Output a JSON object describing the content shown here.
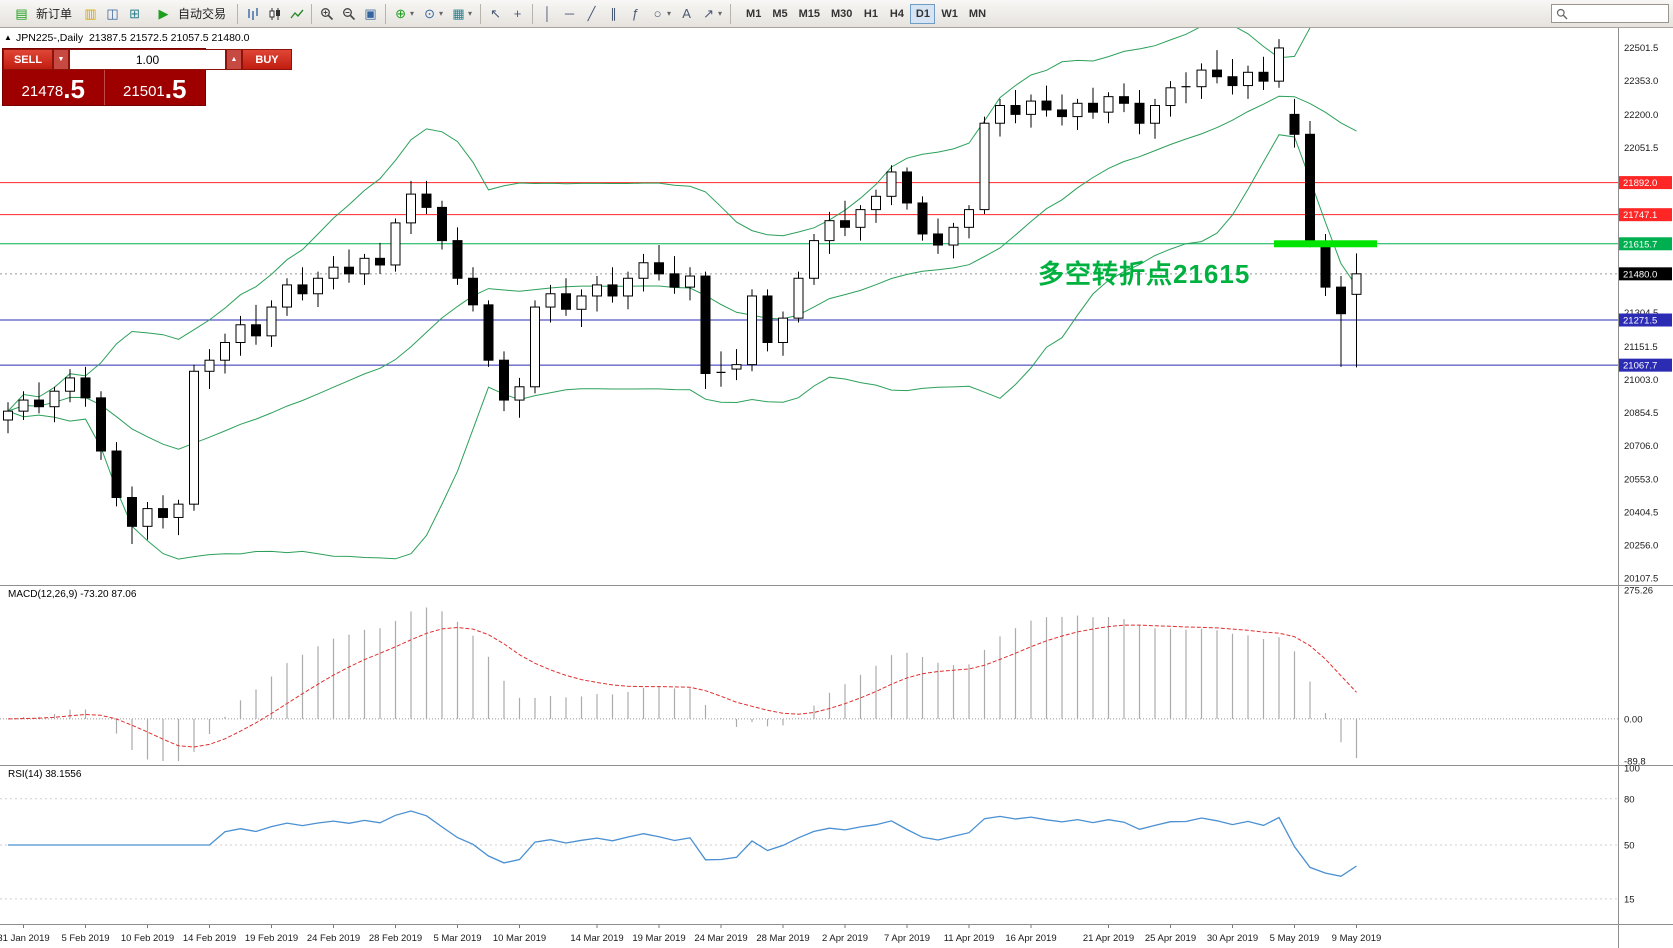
{
  "toolbar": {
    "new_order": "新订单",
    "autotrade": "自动交易",
    "timeframes": [
      "M1",
      "M5",
      "M15",
      "M30",
      "H1",
      "H4",
      "D1",
      "W1",
      "MN"
    ],
    "active_timeframe": "D1"
  },
  "icons": {
    "terminal": "▤",
    "profiles": "▥",
    "charts_grid": "◫",
    "window_new": "⊞",
    "play": "▶",
    "tile_windows": "▣",
    "arrange_windows": "▦",
    "indicators": "⊕",
    "periods": "⊙",
    "templates": "▦",
    "cursor": "↖",
    "crosshair": "+",
    "vertical_line": "│",
    "horizontal_line": "─",
    "trendline": "╱",
    "channel": "∥",
    "fibonacci": "ƒ",
    "shapes": "○",
    "text_tool": "A",
    "arrows_tool": "↗",
    "caret": "▾"
  },
  "chart": {
    "info_line": "JPN225-,Daily  21387.5 21572.5 21057.5 21480.0",
    "trade_widget": {
      "sell_label": "SELL",
      "buy_label": "BUY",
      "volume": "1.00",
      "spin_down": "▼",
      "spin_up": "▲",
      "sell_price_int": "21478",
      "sell_price_dec": ".5",
      "buy_price_int": "21501",
      "buy_price_dec": ".5"
    },
    "annotation": {
      "text": "多空转折点21615",
      "color": "#00b140"
    }
  },
  "panels": {
    "macd_label": "MACD(12,26,9) -73.20 87.06",
    "rsi_label": "RSI(14) 38.1556"
  },
  "chart_data": {
    "type": "candlestick",
    "symbol": "JPN225-",
    "period": "Daily",
    "current_bar": {
      "open": 21387.5,
      "high": 21572.5,
      "low": 21057.5,
      "close": 21480.0
    },
    "bid": 21478.5,
    "ask": 21501.5,
    "price_axis": {
      "min": 20075,
      "max": 22590,
      "ticks": [
        22501.5,
        22353.0,
        22200.0,
        22051.5,
        21304.5,
        21151.5,
        21003.0,
        20854.5,
        20706.0,
        20553.0,
        20404.5,
        20256.0,
        20107.5
      ]
    },
    "hlines": [
      {
        "value": 21892.0,
        "label": "21892.0",
        "color": "#ff2626"
      },
      {
        "value": 21747.1,
        "label": "21747.1",
        "color": "#ff2626"
      },
      {
        "value": 21615.7,
        "label": "21615.7",
        "color": "#00b050"
      },
      {
        "value": 21271.5,
        "label": "21271.5",
        "color": "#2b2bb4"
      },
      {
        "value": 21067.7,
        "label": "21067.7",
        "color": "#2b2bb4"
      }
    ],
    "current_price": {
      "value": 21480.0,
      "label": "21480.0",
      "color": "#000000"
    },
    "highlight": {
      "price": 21615.7,
      "from_bar": 82,
      "to_bar": 88,
      "color": "#00e400"
    },
    "candles": [
      [
        20820,
        20900,
        20760,
        20860
      ],
      [
        20860,
        20950,
        20820,
        20910
      ],
      [
        20910,
        20990,
        20850,
        20880
      ],
      [
        20880,
        20970,
        20810,
        20950
      ],
      [
        20950,
        21050,
        20900,
        21010
      ],
      [
        21010,
        21060,
        20880,
        20920
      ],
      [
        20920,
        20950,
        20640,
        20680
      ],
      [
        20680,
        20720,
        20430,
        20470
      ],
      [
        20470,
        20520,
        20260,
        20340
      ],
      [
        20340,
        20450,
        20280,
        20420
      ],
      [
        20420,
        20480,
        20330,
        20380
      ],
      [
        20380,
        20460,
        20300,
        20440
      ],
      [
        20440,
        21070,
        20410,
        21040
      ],
      [
        21040,
        21140,
        20960,
        21090
      ],
      [
        21090,
        21210,
        21030,
        21170
      ],
      [
        21170,
        21290,
        21110,
        21250
      ],
      [
        21250,
        21340,
        21160,
        21200
      ],
      [
        21200,
        21360,
        21150,
        21330
      ],
      [
        21330,
        21460,
        21290,
        21430
      ],
      [
        21430,
        21510,
        21360,
        21390
      ],
      [
        21390,
        21490,
        21330,
        21460
      ],
      [
        21460,
        21560,
        21410,
        21510
      ],
      [
        21510,
        21590,
        21440,
        21480
      ],
      [
        21480,
        21570,
        21430,
        21550
      ],
      [
        21550,
        21620,
        21480,
        21520
      ],
      [
        21520,
        21730,
        21490,
        21710
      ],
      [
        21710,
        21900,
        21660,
        21840
      ],
      [
        21840,
        21900,
        21750,
        21780
      ],
      [
        21780,
        21810,
        21590,
        21630
      ],
      [
        21630,
        21690,
        21430,
        21460
      ],
      [
        21460,
        21510,
        21310,
        21340
      ],
      [
        21340,
        21360,
        21060,
        21090
      ],
      [
        21090,
        21130,
        20860,
        20910
      ],
      [
        20910,
        21010,
        20830,
        20970
      ],
      [
        20970,
        21360,
        20940,
        21330
      ],
      [
        21330,
        21430,
        21260,
        21390
      ],
      [
        21390,
        21460,
        21290,
        21320
      ],
      [
        21320,
        21410,
        21240,
        21380
      ],
      [
        21380,
        21470,
        21310,
        21430
      ],
      [
        21430,
        21510,
        21350,
        21380
      ],
      [
        21380,
        21490,
        21320,
        21460
      ],
      [
        21460,
        21570,
        21400,
        21530
      ],
      [
        21530,
        21610,
        21450,
        21480
      ],
      [
        21480,
        21560,
        21390,
        21420
      ],
      [
        21420,
        21510,
        21360,
        21470
      ],
      [
        21470,
        21490,
        20960,
        21030
      ],
      [
        21030,
        21130,
        20970,
        21035
      ],
      [
        21050,
        21140,
        21000,
        21070
      ],
      [
        21070,
        21410,
        21040,
        21380
      ],
      [
        21380,
        21410,
        21130,
        21170
      ],
      [
        21170,
        21310,
        21110,
        21280
      ],
      [
        21280,
        21490,
        21260,
        21460
      ],
      [
        21460,
        21660,
        21430,
        21630
      ],
      [
        21630,
        21760,
        21570,
        21720
      ],
      [
        21720,
        21810,
        21650,
        21690
      ],
      [
        21690,
        21790,
        21630,
        21770
      ],
      [
        21770,
        21860,
        21710,
        21830
      ],
      [
        21830,
        21970,
        21790,
        21940
      ],
      [
        21940,
        21960,
        21770,
        21800
      ],
      [
        21800,
        21830,
        21630,
        21660
      ],
      [
        21660,
        21730,
        21570,
        21610
      ],
      [
        21610,
        21710,
        21550,
        21690
      ],
      [
        21690,
        21790,
        21640,
        21770
      ],
      [
        21770,
        22190,
        21750,
        22160
      ],
      [
        22160,
        22270,
        22100,
        22240
      ],
      [
        22240,
        22310,
        22160,
        22200
      ],
      [
        22200,
        22290,
        22140,
        22260
      ],
      [
        22260,
        22330,
        22190,
        22220
      ],
      [
        22220,
        22290,
        22150,
        22190
      ],
      [
        22190,
        22270,
        22130,
        22250
      ],
      [
        22250,
        22320,
        22180,
        22210
      ],
      [
        22210,
        22300,
        22160,
        22280
      ],
      [
        22280,
        22340,
        22210,
        22250
      ],
      [
        22250,
        22310,
        22110,
        22160
      ],
      [
        22160,
        22270,
        22090,
        22240
      ],
      [
        22240,
        22350,
        22190,
        22320
      ],
      [
        22320,
        22390,
        22250,
        22325
      ],
      [
        22325,
        22430,
        22270,
        22400
      ],
      [
        22400,
        22490,
        22340,
        22370
      ],
      [
        22370,
        22450,
        22290,
        22330
      ],
      [
        22330,
        22420,
        22270,
        22390
      ],
      [
        22390,
        22460,
        22310,
        22350
      ],
      [
        22350,
        22540,
        22320,
        22500
      ],
      [
        22200,
        22270,
        22050,
        22110
      ],
      [
        22110,
        22170,
        21600,
        21615
      ],
      [
        21615,
        21660,
        21380,
        21420
      ],
      [
        21420,
        21470,
        21060,
        21300
      ],
      [
        21387.5,
        21572.5,
        21057.5,
        21480.0
      ]
    ],
    "date_labels": [
      {
        "text": "31 Jan 2019",
        "bar": 1
      },
      {
        "text": "5 Feb 2019",
        "bar": 5
      },
      {
        "text": "10 Feb 2019",
        "bar": 9
      },
      {
        "text": "14 Feb 2019",
        "bar": 13
      },
      {
        "text": "19 Feb 2019",
        "bar": 17
      },
      {
        "text": "24 Feb 2019",
        "bar": 21
      },
      {
        "text": "28 Feb 2019",
        "bar": 25
      },
      {
        "text": "5 Mar 2019",
        "bar": 29
      },
      {
        "text": "10 Mar 2019",
        "bar": 33
      },
      {
        "text": "14 Mar 2019",
        "bar": 38
      },
      {
        "text": "19 Mar 2019",
        "bar": 42
      },
      {
        "text": "24 Mar 2019",
        "bar": 46
      },
      {
        "text": "28 Mar 2019",
        "bar": 50
      },
      {
        "text": "2 Apr 2019",
        "bar": 54
      },
      {
        "text": "7 Apr 2019",
        "bar": 58
      },
      {
        "text": "11 Apr 2019",
        "bar": 62
      },
      {
        "text": "16 Apr 2019",
        "bar": 66
      },
      {
        "text": "21 Apr 2019",
        "bar": 71
      },
      {
        "text": "25 Apr 2019",
        "bar": 75
      },
      {
        "text": "30 Apr 2019",
        "bar": 79
      },
      {
        "text": "5 May 2019",
        "bar": 83
      },
      {
        "text": "9 May 2019",
        "bar": 87
      }
    ],
    "indicators": {
      "bollinger": {
        "period": 20,
        "deviations": 2,
        "color": "#2ca05a"
      },
      "macd": {
        "params": [
          12,
          26,
          9
        ],
        "value": -73.2,
        "signal_value": 87.06,
        "axis": {
          "max": 275.26,
          "min": -89.8,
          "labels": [
            "275.26",
            "0.00",
            "-89.8"
          ]
        },
        "histogram_color": "#ababab",
        "signal_color": "#e03030"
      },
      "rsi": {
        "period": 14,
        "value": 38.1556,
        "color": "#4a90d2",
        "axis_ticks": [
          100,
          80,
          50,
          15
        ]
      }
    }
  }
}
